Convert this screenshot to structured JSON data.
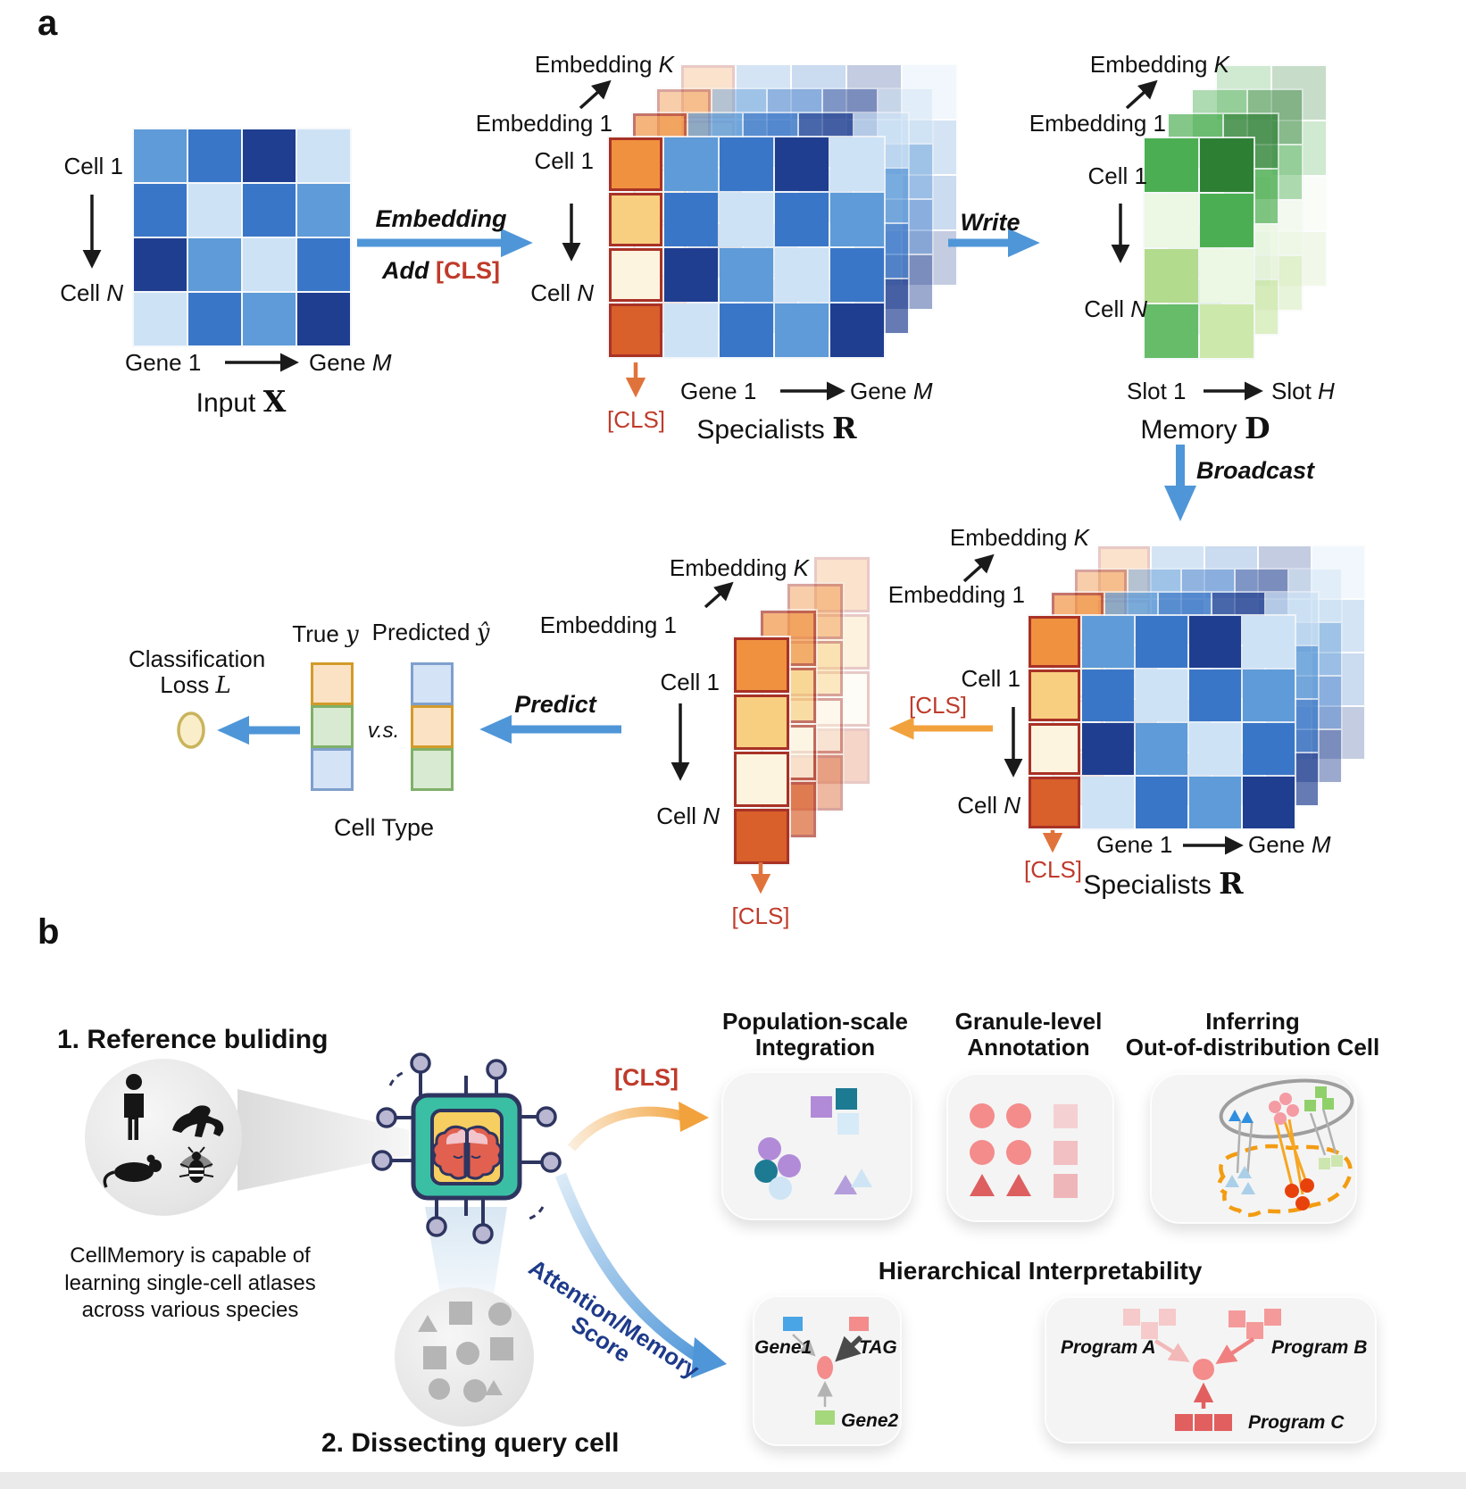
{
  "colors": {
    "cls_red": "#bf3b2b",
    "arrow_blue": "#4f96d8",
    "arrow_orange": "#f2a23c",
    "arrow_dark_orange": "#e0733b",
    "attention_label_blue": "#1e3a8a",
    "matrix_blue_dark": "#1f3e90",
    "memory_green": "#4cae52",
    "card_background": "#f4f4f4"
  },
  "palette": {
    "bL": "#cde2f5",
    "bM": "#5e9bd8",
    "bS": "#3a76c7",
    "bD": "#1f3e90",
    "o1": "#f0913f|#a93226",
    "o2": "#f8cf80|#a93226",
    "o3": "#fdf4df|#a93226",
    "o4": "#d95f2b|#a93226",
    "gA": "#4cae52",
    "gB": "#2d7f34",
    "gC": "#ecf7e4",
    "gD": "#b2db8d",
    "gE": "#67bc69",
    "gF": "#cde8ab",
    "t1": "#fbe2c4|#d29b2b",
    "t2": "#d9ead2|#7fb069",
    "t3": "#d4e3f6|#7f9fcc"
  },
  "matrices": {
    "input": [
      [
        "bM",
        "bS",
        "bD",
        "bL"
      ],
      [
        "bS",
        "bL",
        "bS",
        "bM"
      ],
      [
        "bD",
        "bM",
        "bL",
        "bS"
      ],
      [
        "bL",
        "bS",
        "bM",
        "bD"
      ]
    ],
    "spec": [
      [
        "o1",
        "bM",
        "bS",
        "bD",
        "bL"
      ],
      [
        "o2",
        "bS",
        "bL",
        "bS",
        "bM"
      ],
      [
        "o3",
        "bD",
        "bM",
        "bL",
        "bS"
      ],
      [
        "o4",
        "bL",
        "bS",
        "bM",
        "bD"
      ]
    ],
    "memory": [
      [
        "gA",
        "gB"
      ],
      [
        "gC",
        "gA"
      ],
      [
        "gD",
        "gC"
      ],
      [
        "gE",
        "gF"
      ]
    ],
    "cls_col": [
      [
        "o1"
      ],
      [
        "o2"
      ],
      [
        "o3"
      ],
      [
        "o4"
      ]
    ],
    "true_col": [
      [
        "t1"
      ],
      [
        "t2"
      ],
      [
        "t3"
      ]
    ],
    "pred_col": [
      [
        "t3"
      ],
      [
        "t1"
      ],
      [
        "t2"
      ]
    ]
  },
  "panel_a": {
    "tag": "a",
    "input": {
      "cell1": "Cell 1",
      "cellN": {
        "pre": "Cell ",
        "it": "N"
      },
      "gene1": "Gene 1",
      "geneM": {
        "pre": "Gene ",
        "it": "M"
      },
      "title": {
        "pre": "Input ",
        "math": "X"
      }
    },
    "embed_step": {
      "line1": "Embedding",
      "add": "Add ",
      "cls": "[CLS]"
    },
    "spec1": {
      "embK": {
        "pre": "Embedding ",
        "it": "K"
      },
      "emb1": "Embedding 1",
      "cell1": "Cell 1",
      "cellN": {
        "pre": "Cell ",
        "it": "N"
      },
      "cls": "[CLS]",
      "gene1": "Gene 1",
      "geneM": {
        "pre": "Gene ",
        "it": "M"
      },
      "title": {
        "pre": "Specialists ",
        "math": "R"
      }
    },
    "write": "Write",
    "memory": {
      "embK": {
        "pre": "Embedding ",
        "it": "K"
      },
      "emb1": "Embedding 1",
      "cell1": "Cell 1",
      "cellN": {
        "pre": "Cell ",
        "it": "N"
      },
      "slot1": "Slot 1",
      "slotH": {
        "pre": "Slot ",
        "it": "H"
      },
      "title": {
        "pre": "Memory ",
        "math": "D"
      }
    },
    "broadcast": "Broadcast",
    "spec2": {
      "embK": {
        "pre": "Embedding ",
        "it": "K"
      },
      "emb1": "Embedding 1",
      "cell1": "Cell 1",
      "cellN": {
        "pre": "Cell ",
        "it": "N"
      },
      "cls_left": "[CLS]",
      "cls_down": "[CLS]",
      "gene1": "Gene 1",
      "geneM": {
        "pre": "Gene ",
        "it": "M"
      },
      "title": {
        "pre": "Specialists ",
        "math": "R"
      }
    },
    "stack": {
      "embK": {
        "pre": "Embedding ",
        "it": "K"
      },
      "emb1": "Embedding 1",
      "cell1": "Cell 1",
      "cellN": {
        "pre": "Cell ",
        "it": "N"
      },
      "cls": "[CLS]"
    },
    "predict": "Predict",
    "compare": {
      "true_label": {
        "pre": "True ",
        "math": "y"
      },
      "pred_label": {
        "pre": "Predicted ",
        "math": "ŷ"
      },
      "vs": "v.s.",
      "cell_type": "Cell Type"
    },
    "loss": {
      "line1": "Classification",
      "line2": {
        "pre": "Loss ",
        "math": "L"
      }
    }
  },
  "panel_b": {
    "tag": "b",
    "ref_title": "1. Reference buliding",
    "desc_lines": {
      "l1": "CellMemory is capable of",
      "l2": "learning single-cell atlases",
      "l3": "across various species"
    },
    "dissect_title": "2. Dissecting query cell",
    "cls": "[CLS]",
    "attn_line1": "Attention/Memory",
    "attn_line2": "Score",
    "cards": {
      "integration": {
        "l1": "Population-scale",
        "l2": "Integration"
      },
      "annotation": {
        "l1": "Granule-level",
        "l2": "Annotation"
      },
      "ood": {
        "l1": "Inferring",
        "l2": "Out-of-distribution Cell"
      },
      "hier_title": "Hierarchical Interpretability",
      "gene1": "Gene1",
      "tag": "TAG",
      "gene2": "Gene2",
      "programA": "Program A",
      "programB": "Program B",
      "programC": "Program C"
    }
  }
}
